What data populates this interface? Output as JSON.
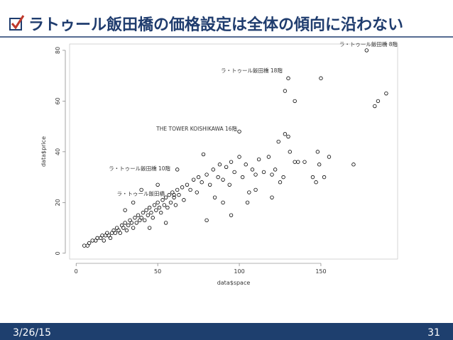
{
  "header": {
    "title": "ラトゥール飯田橋の価格設定は全体の傾向に沿わない"
  },
  "chart_data": {
    "type": "scatter",
    "xlabel": "data$space",
    "ylabel": "data$price",
    "color": "#000000",
    "xlim": [
      -4,
      197
    ],
    "ylim": [
      -2.3,
      82.5
    ],
    "xticks": [
      0,
      50,
      100,
      150
    ],
    "yticks": [
      0,
      20,
      40,
      60,
      80
    ],
    "x": [
      5,
      7,
      8,
      10,
      12,
      13,
      15,
      16,
      17,
      18,
      19,
      20,
      21,
      22,
      23,
      24,
      25,
      26,
      27,
      28,
      29,
      30,
      31,
      32,
      33,
      34,
      35,
      36,
      37,
      38,
      39,
      40,
      41,
      42,
      43,
      44,
      45,
      46,
      47,
      48,
      49,
      50,
      51,
      52,
      53,
      54,
      55,
      56,
      57,
      58,
      59,
      60,
      61,
      62,
      63,
      65,
      66,
      68,
      70,
      72,
      74,
      75,
      77,
      78,
      80,
      82,
      84,
      85,
      87,
      88,
      90,
      92,
      94,
      95,
      97,
      100,
      100,
      102,
      104,
      106,
      108,
      110,
      112,
      115,
      118,
      120,
      122,
      124,
      125,
      127,
      128,
      128,
      130,
      130,
      131,
      134,
      134,
      136,
      140,
      145,
      147,
      148,
      149,
      150,
      152,
      155,
      170,
      178,
      183,
      185,
      190,
      62,
      60,
      80,
      90,
      95,
      105,
      110,
      120,
      45,
      55,
      35,
      30,
      40,
      50
    ],
    "values": [
      3,
      3,
      4,
      5,
      5,
      6,
      6,
      7,
      5,
      7,
      8,
      7,
      6,
      8,
      9,
      8,
      10,
      9,
      8,
      11,
      10,
      12,
      9,
      11,
      13,
      12,
      10,
      14,
      12,
      15,
      13,
      14,
      16,
      13,
      17,
      15,
      18,
      16,
      14,
      19,
      17,
      20,
      18,
      16,
      21,
      19,
      22,
      18,
      23,
      20,
      24,
      22,
      19,
      25,
      23,
      26,
      21,
      27,
      25,
      29,
      24,
      30,
      28,
      39,
      31,
      27,
      33,
      22,
      30,
      35,
      29,
      34,
      27,
      36,
      32,
      48,
      38,
      30,
      35,
      24,
      33,
      31,
      37,
      32,
      38,
      31,
      33,
      44,
      28,
      30,
      47,
      64,
      46,
      69,
      40,
      60,
      36,
      36,
      36,
      30,
      28,
      40,
      35,
      69,
      30,
      38,
      35,
      80,
      58,
      60,
      63,
      33,
      23,
      13,
      20,
      15,
      20,
      25,
      22,
      10,
      12,
      20,
      17,
      25,
      27
    ],
    "annotations": [
      {
        "text": "ラ・トゥール飯田橋 8階",
        "x": 197,
        "y": 81.7
      },
      {
        "text": "ラ・トゥール飯田橋 18階",
        "x": 126.5,
        "y": 71.3
      },
      {
        "text": "THE TOWER KOISHIKAWA 16階",
        "x": 98.7,
        "y": 48.4
      },
      {
        "text": "ラ・トゥール飯田橋 10階",
        "x": 57.8,
        "y": 32.7
      },
      {
        "text": "ラ・トゥール飯田橋",
        "x": 54.3,
        "y": 22.7
      }
    ]
  },
  "footer": {
    "date": "3/26/15",
    "page": "31"
  }
}
